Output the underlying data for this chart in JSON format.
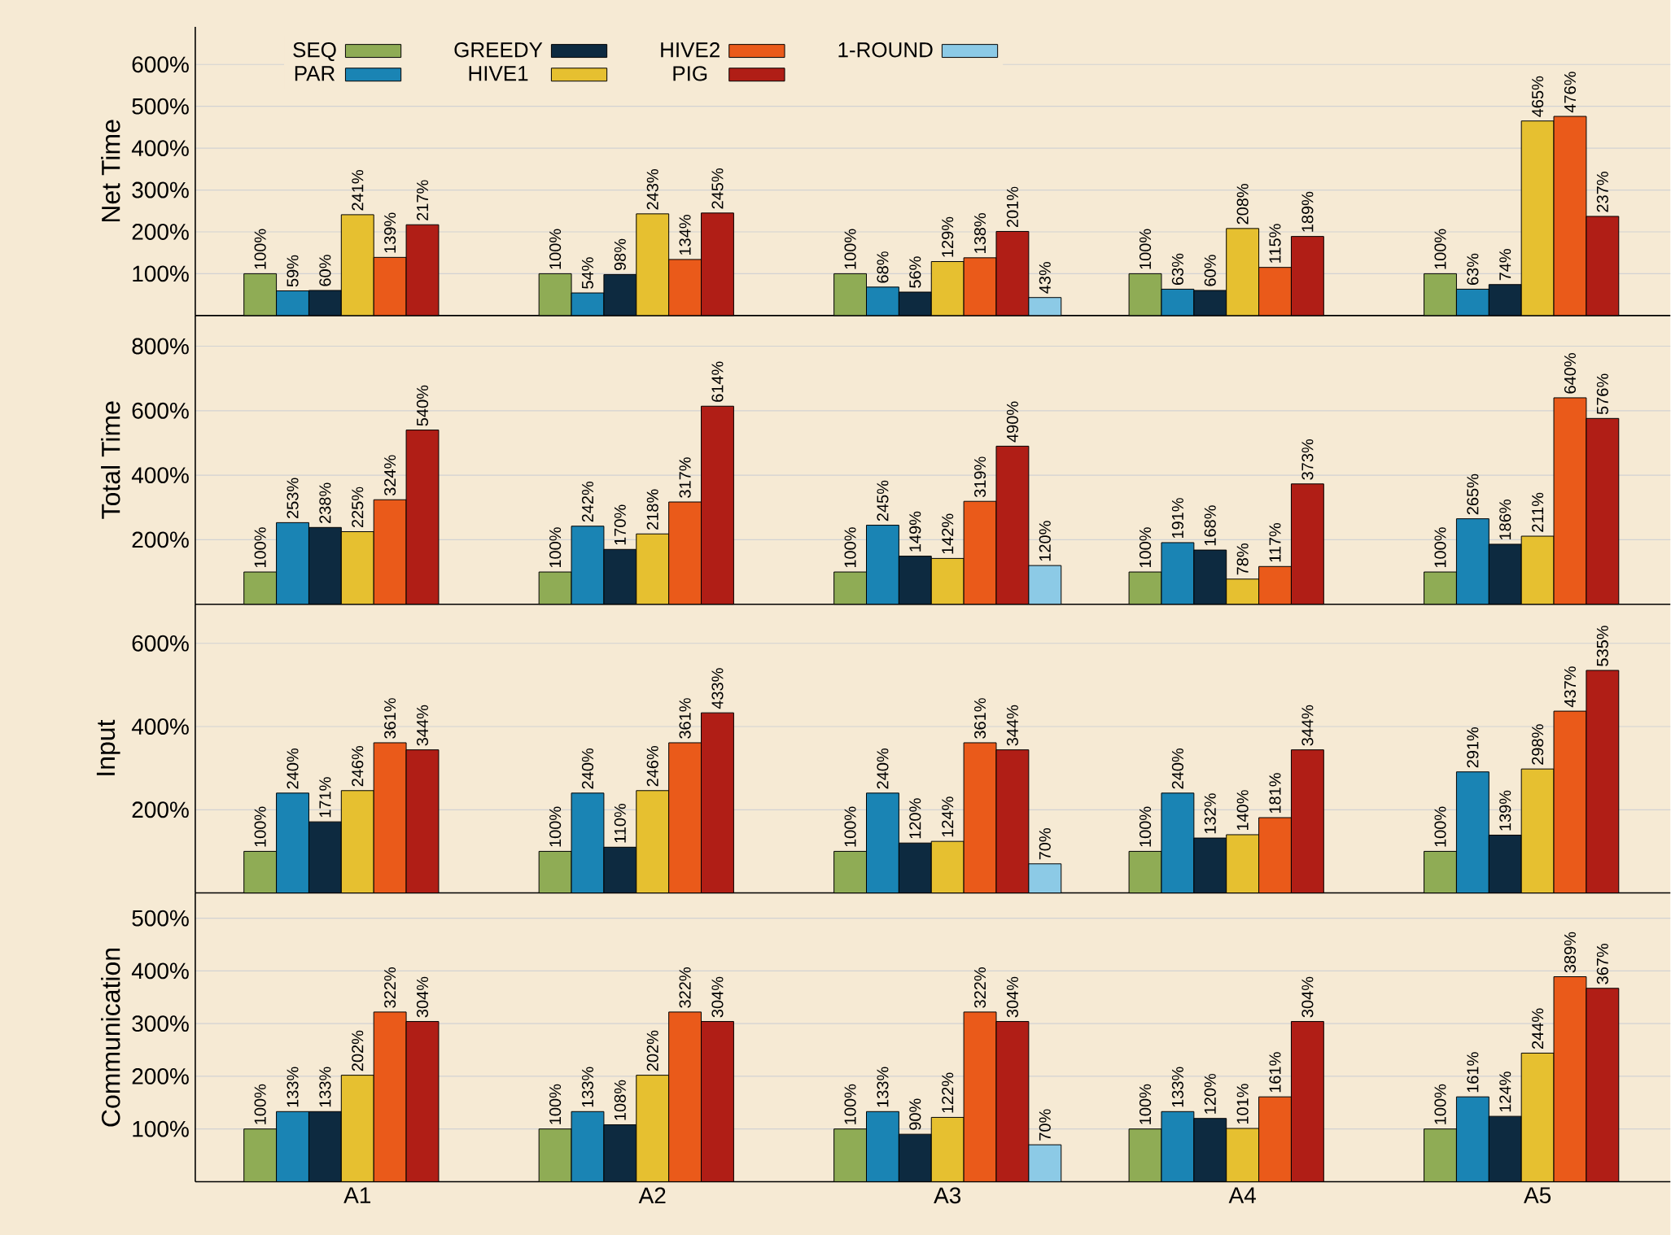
{
  "chart_data": [
    {
      "type": "bar",
      "ylabel": "Net Time",
      "categories": [
        null,
        null,
        null,
        null,
        null
      ],
      "ylim": [
        0,
        690
      ],
      "yticks": [
        {
          "value": 100,
          "label": "100%"
        },
        {
          "value": 200,
          "label": "200%"
        },
        {
          "value": 300,
          "label": "300%"
        },
        {
          "value": 400,
          "label": "400%"
        },
        {
          "value": 500,
          "label": "500%"
        },
        {
          "value": 600,
          "label": "600%"
        }
      ],
      "grid": "y",
      "tick_labels": "y",
      "legend": "top left",
      "series": [
        {
          "name": "SEQ",
          "color": "#8fac55",
          "values": [
            100,
            100,
            100,
            100,
            100
          ],
          "value_labels": [
            "100%",
            "100%",
            "100%",
            "100%",
            "100%"
          ]
        },
        {
          "name": "PAR",
          "color": "#1a84b4",
          "values": [
            59,
            54,
            68,
            63,
            63
          ],
          "value_labels": [
            "59%",
            "54%",
            "68%",
            "63%",
            "63%"
          ]
        },
        {
          "name": "GREEDY",
          "color": "#0d2a40",
          "values": [
            60,
            98,
            56,
            60,
            74
          ],
          "value_labels": [
            "60%",
            "98%",
            "56%",
            "60%",
            "74%"
          ]
        },
        {
          "name": "HIVE1",
          "color": "#e6c030",
          "values": [
            241,
            243,
            129,
            208,
            465
          ],
          "value_labels": [
            "241%",
            "243%",
            "129%",
            "208%",
            "465%"
          ]
        },
        {
          "name": "HIVE2",
          "color": "#ea5a1a",
          "values": [
            139,
            134,
            138,
            115,
            476
          ],
          "value_labels": [
            "139%",
            "134%",
            "138%",
            "115%",
            "476%"
          ]
        },
        {
          "name": "PIG",
          "color": "#b01e16",
          "values": [
            217,
            245,
            201,
            189,
            237
          ],
          "value_labels": [
            "217%",
            "245%",
            "201%",
            "189%",
            "237%"
          ]
        },
        {
          "name": "1-ROUND",
          "color": "#8ccae6",
          "values": [
            null,
            null,
            43,
            null,
            null
          ],
          "value_labels": [
            null,
            null,
            "43%",
            null,
            null
          ]
        }
      ]
    },
    {
      "type": "bar",
      "ylabel": "Total Time",
      "categories": [
        null,
        null,
        null,
        null,
        null
      ],
      "ylim": [
        0,
        895
      ],
      "yticks": [
        {
          "value": 200,
          "label": "200%"
        },
        {
          "value": 400,
          "label": "400%"
        },
        {
          "value": 600,
          "label": "600%"
        },
        {
          "value": 800,
          "label": "800%"
        }
      ],
      "grid": "y",
      "tick_labels": "y",
      "series": [
        {
          "color": "#8fac55",
          "values": [
            100,
            100,
            100,
            100,
            100
          ],
          "value_labels": [
            "100%",
            "100%",
            "100%",
            "100%",
            "100%"
          ]
        },
        {
          "color": "#1a84b4",
          "values": [
            253,
            242,
            245,
            191,
            265
          ],
          "value_labels": [
            "253%",
            "242%",
            "245%",
            "191%",
            "265%"
          ]
        },
        {
          "color": "#0d2a40",
          "values": [
            238,
            170,
            149,
            168,
            186
          ],
          "value_labels": [
            "238%",
            "170%",
            "149%",
            "168%",
            "186%"
          ]
        },
        {
          "color": "#e6c030",
          "values": [
            225,
            218,
            142,
            78,
            211
          ],
          "value_labels": [
            "225%",
            "218%",
            "142%",
            "78%",
            "211%"
          ]
        },
        {
          "color": "#ea5a1a",
          "values": [
            324,
            317,
            319,
            117,
            640
          ],
          "value_labels": [
            "324%",
            "317%",
            "319%",
            "117%",
            "640%"
          ]
        },
        {
          "color": "#b01e16",
          "values": [
            540,
            614,
            490,
            373,
            576
          ],
          "value_labels": [
            "540%",
            "614%",
            "490%",
            "373%",
            "576%"
          ]
        },
        {
          "color": "#8ccae6",
          "values": [
            null,
            null,
            120,
            null,
            null
          ],
          "value_labels": [
            null,
            null,
            "120%",
            null,
            null
          ]
        }
      ]
    },
    {
      "type": "bar",
      "ylabel": "Input",
      "categories": [
        null,
        null,
        null,
        null,
        null
      ],
      "ylim": [
        0,
        694
      ],
      "yticks": [
        {
          "value": 200,
          "label": "200%"
        },
        {
          "value": 400,
          "label": "400%"
        },
        {
          "value": 600,
          "label": "600%"
        }
      ],
      "grid": "y",
      "tick_labels": "y",
      "series": [
        {
          "color": "#8fac55",
          "values": [
            100,
            100,
            100,
            100,
            100
          ],
          "value_labels": [
            "100%",
            "100%",
            "100%",
            "100%",
            "100%"
          ]
        },
        {
          "color": "#1a84b4",
          "values": [
            240,
            240,
            240,
            240,
            291
          ],
          "value_labels": [
            "240%",
            "240%",
            "240%",
            "240%",
            "291%"
          ]
        },
        {
          "color": "#0d2a40",
          "values": [
            171,
            110,
            120,
            132,
            139
          ],
          "value_labels": [
            "171%",
            "110%",
            "120%",
            "132%",
            "139%"
          ]
        },
        {
          "color": "#e6c030",
          "values": [
            246,
            246,
            124,
            140,
            298
          ],
          "value_labels": [
            "246%",
            "246%",
            "124%",
            "140%",
            "298%"
          ]
        },
        {
          "color": "#ea5a1a",
          "values": [
            361,
            361,
            361,
            181,
            437
          ],
          "value_labels": [
            "361%",
            "361%",
            "361%",
            "181%",
            "437%"
          ]
        },
        {
          "color": "#b01e16",
          "values": [
            344,
            433,
            344,
            344,
            535
          ],
          "value_labels": [
            "344%",
            "433%",
            "344%",
            "344%",
            "535%"
          ]
        },
        {
          "color": "#8ccae6",
          "values": [
            null,
            null,
            70,
            null,
            null
          ],
          "value_labels": [
            null,
            null,
            "70%",
            null,
            null
          ]
        }
      ]
    },
    {
      "type": "bar",
      "ylabel": "Communication",
      "categories": [
        "A1",
        "A2",
        "A3",
        "A4",
        "A5"
      ],
      "ylim": [
        0,
        548
      ],
      "yticks": [
        {
          "value": 100,
          "label": "100%"
        },
        {
          "value": 200,
          "label": "200%"
        },
        {
          "value": 300,
          "label": "300%"
        },
        {
          "value": 400,
          "label": "400%"
        },
        {
          "value": 500,
          "label": "500%"
        }
      ],
      "grid": "y",
      "series": [
        {
          "color": "#8fac55",
          "values": [
            100,
            100,
            100,
            100,
            100
          ],
          "value_labels": [
            "100%",
            "100%",
            "100%",
            "100%",
            "100%"
          ]
        },
        {
          "color": "#1a84b4",
          "values": [
            133,
            133,
            133,
            133,
            161
          ],
          "value_labels": [
            "133%",
            "133%",
            "133%",
            "133%",
            "161%"
          ]
        },
        {
          "color": "#0d2a40",
          "values": [
            133,
            108,
            90,
            120,
            124
          ],
          "value_labels": [
            "133%",
            "108%",
            "90%",
            "120%",
            "124%"
          ]
        },
        {
          "color": "#e6c030",
          "values": [
            202,
            202,
            122,
            101,
            244
          ],
          "value_labels": [
            "202%",
            "202%",
            "122%",
            "101%",
            "244%"
          ]
        },
        {
          "color": "#ea5a1a",
          "values": [
            322,
            322,
            322,
            161,
            389
          ],
          "value_labels": [
            "322%",
            "322%",
            "322%",
            "161%",
            "389%"
          ]
        },
        {
          "color": "#b01e16",
          "values": [
            304,
            304,
            304,
            304,
            367
          ],
          "value_labels": [
            "304%",
            "304%",
            "304%",
            "304%",
            "367%"
          ]
        },
        {
          "color": "#8ccae6",
          "values": [
            null,
            null,
            70,
            null,
            null
          ],
          "value_labels": [
            null,
            null,
            "70%",
            null,
            null
          ]
        }
      ]
    }
  ]
}
